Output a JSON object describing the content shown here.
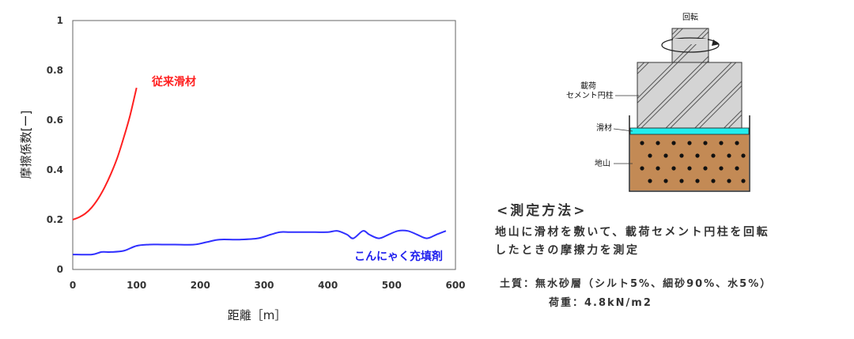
{
  "chart_data": {
    "type": "line",
    "xlabel": "距離［m］",
    "ylabel": "摩擦係数[ー]",
    "xlim": [
      0,
      600
    ],
    "ylim": [
      0,
      1
    ],
    "x_ticks": [
      "0",
      "100",
      "200",
      "300",
      "400",
      "500",
      "600"
    ],
    "y_ticks": [
      "0",
      "0.2",
      "0.4",
      "0.6",
      "0.8",
      "1"
    ],
    "grid": false,
    "series": [
      {
        "name": "従来滑材",
        "color": "#ff2020",
        "x": [
          0,
          10,
          20,
          30,
          40,
          50,
          60,
          70,
          80,
          90,
          100
        ],
        "y": [
          0.2,
          0.21,
          0.225,
          0.25,
          0.285,
          0.33,
          0.385,
          0.45,
          0.53,
          0.62,
          0.73
        ]
      },
      {
        "name": "こんにゃく充填剤",
        "color": "#3030ff",
        "x": [
          0,
          30,
          45,
          60,
          80,
          100,
          120,
          140,
          160,
          190,
          210,
          230,
          260,
          290,
          310,
          325,
          340,
          360,
          380,
          400,
          415,
          430,
          440,
          455,
          465,
          480,
          495,
          510,
          525,
          540,
          555,
          570,
          585
        ],
        "y": [
          0.06,
          0.06,
          0.07,
          0.07,
          0.075,
          0.095,
          0.1,
          0.1,
          0.1,
          0.1,
          0.11,
          0.12,
          0.12,
          0.125,
          0.14,
          0.15,
          0.15,
          0.15,
          0.15,
          0.15,
          0.155,
          0.14,
          0.125,
          0.155,
          0.14,
          0.125,
          0.14,
          0.155,
          0.155,
          0.14,
          0.125,
          0.14,
          0.155
        ]
      }
    ]
  },
  "diagram": {
    "rotation_label": "回転",
    "load_label_line1": "載荷",
    "load_label_line2": "セメント円柱",
    "lubricant_label": "滑材",
    "ground_label": "地山",
    "colors": {
      "cylinder": "#d4d4d4",
      "lubricant": "#22eeee",
      "soil": "#c38a55",
      "dots": "#111111"
    }
  },
  "method": {
    "heading": "<測定方法>",
    "description_line1": "地山に滑材を敷いて、載荷セメント円柱を回転",
    "description_line2": "したときの摩擦力を測定"
  },
  "conditions": {
    "soil": "土質：無水砂層（シルト5%、細砂90%、水5%）",
    "load": "荷重：4.8kN/m2"
  }
}
